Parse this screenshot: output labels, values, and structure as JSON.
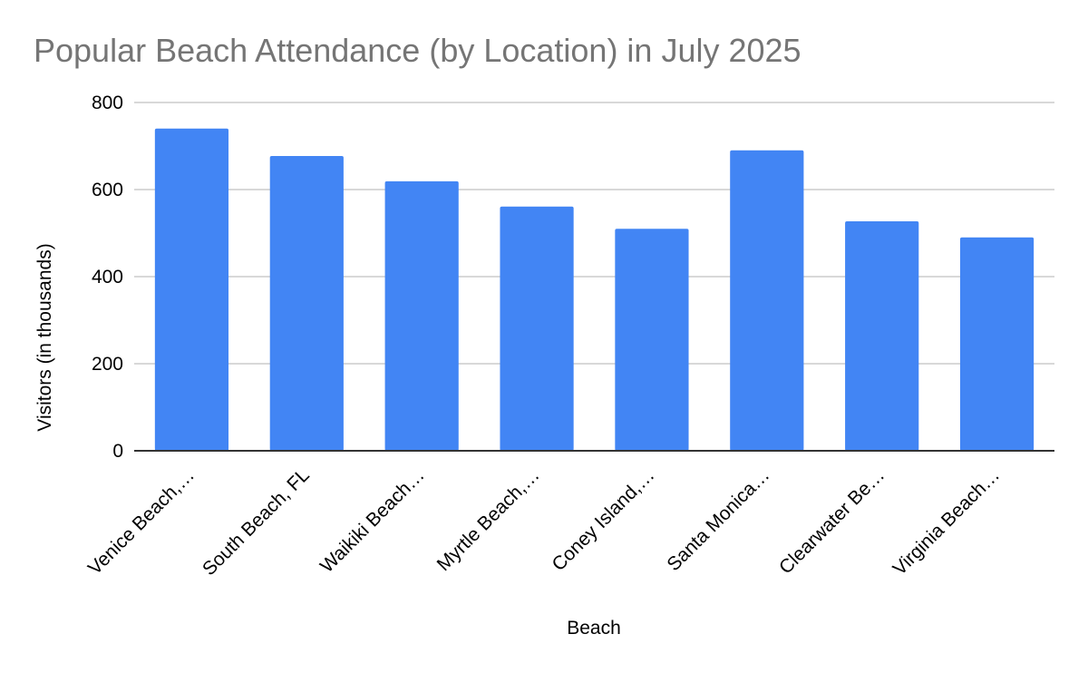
{
  "chart_data": {
    "type": "bar",
    "title": "Popular Beach Attendance (by Location) in July 2025",
    "xlabel": "Beach",
    "ylabel": "Visitors (in thousands)",
    "categories": [
      "Venice Beach,…",
      "South Beach, FL",
      "Waikiki Beach…",
      "Myrtle Beach,…",
      "Coney Island,…",
      "Santa Monica…",
      "Clearwater Be…",
      "Virginia Beach…"
    ],
    "series": [
      {
        "name": "Visitors (in thousands)",
        "values": [
          740,
          677,
          619,
          561,
          510,
          690,
          527,
          490
        ]
      }
    ],
    "ylim": [
      0,
      800
    ],
    "yticks": [
      "0",
      "200",
      "400",
      "600",
      "800"
    ],
    "grid": true,
    "legend": "none",
    "colors": {
      "bar": "#4285f4",
      "title": "#757575",
      "grid": "#cccccc",
      "axis": "#333333"
    }
  }
}
